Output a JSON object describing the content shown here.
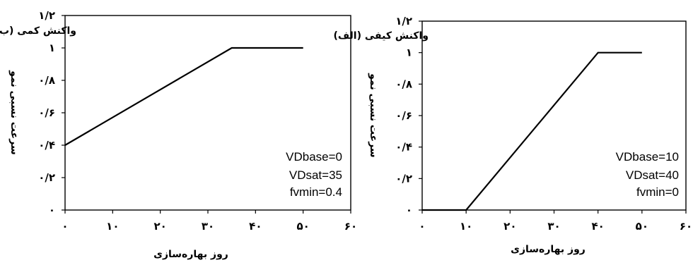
{
  "chart_data": [
    {
      "type": "line",
      "title": "واکنش کمی (ب)",
      "xlabel": "روز بهاره‌سازی",
      "ylabel": "سرعت نسبی نمو",
      "xlim": [
        0,
        60
      ],
      "ylim": [
        0,
        1.2
      ],
      "x_ticks": [
        "۰",
        "۱۰",
        "۲۰",
        "۳۰",
        "۴۰",
        "۵۰",
        "۶۰"
      ],
      "y_ticks": [
        "۰",
        "۰/۲",
        "۰/۴",
        "۰/۶",
        "۰/۸",
        "۱",
        "۱/۲"
      ],
      "series": [
        {
          "x": [
            0,
            35,
            50
          ],
          "y": [
            0.4,
            1.0,
            1.0
          ]
        }
      ],
      "annotations": [
        "VDbase=0",
        "VDsat=35",
        "fvmin=0.4"
      ],
      "grid": false
    },
    {
      "type": "line",
      "title": "واکنش کیفی (الف)",
      "xlabel": "روز بهاره‌سازی",
      "ylabel": "سرعت نسبی نمو",
      "xlim": [
        0,
        60
      ],
      "ylim": [
        0,
        1.2
      ],
      "x_ticks": [
        "۰",
        "۱۰",
        "۲۰",
        "۳۰",
        "۴۰",
        "۵۰",
        "۶۰"
      ],
      "y_ticks": [
        "۰",
        "۰/۲",
        "۰/۴",
        "۰/۶",
        "۰/۸",
        "۱",
        "۱/۲"
      ],
      "series": [
        {
          "x": [
            0,
            10,
            40,
            50
          ],
          "y": [
            0,
            0,
            1.0,
            1.0
          ]
        }
      ],
      "annotations": [
        "VDbase=10",
        "VDsat=40",
        "fvmin=0"
      ],
      "grid": false
    }
  ]
}
